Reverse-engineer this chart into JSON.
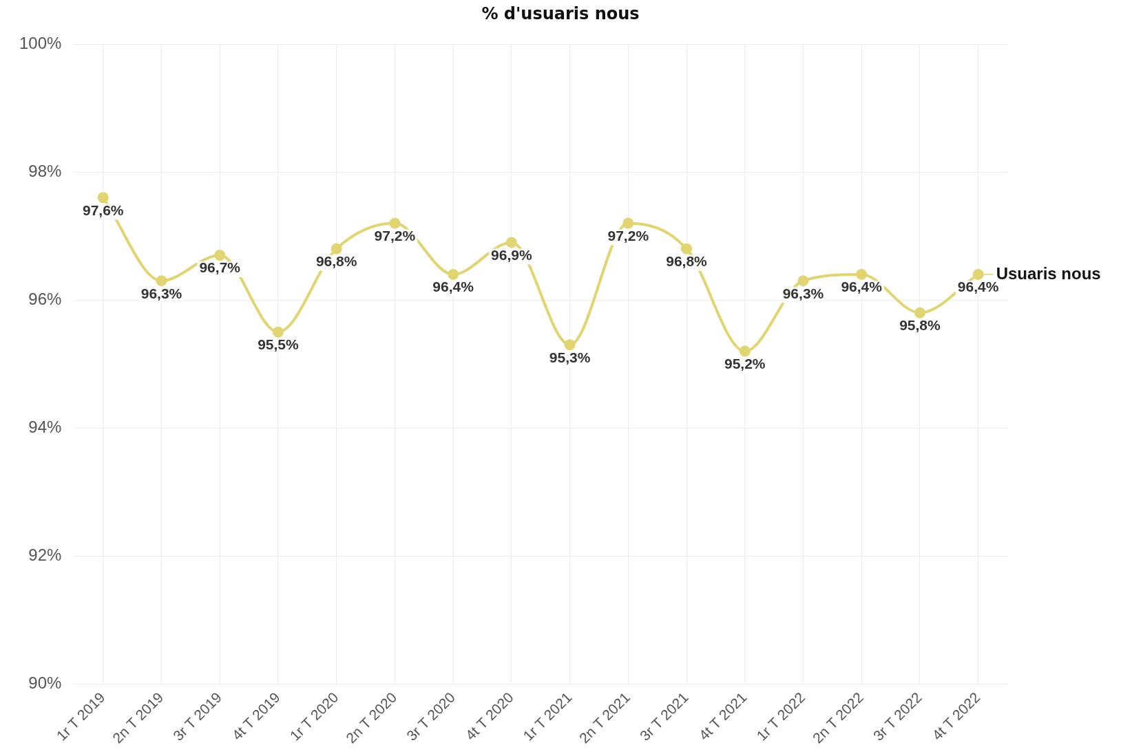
{
  "chart_data": {
    "type": "line",
    "title": "% d'usuaris nous",
    "categories": [
      "1r T 2019",
      "2n T 2019",
      "3r T 2019",
      "4t T 2019",
      "1r T 2020",
      "2n T 2020",
      "3r T 2020",
      "4t T 2020",
      "1r T 2021",
      "2n T 2021",
      "3r T 2021",
      "4t T 2021",
      "1r T 2022",
      "2n T 2022",
      "3r T 2022",
      "4t T 2022"
    ],
    "series": [
      {
        "name": "Usuaris nous",
        "color": "#e0d570",
        "values": [
          97.6,
          96.3,
          96.7,
          95.5,
          96.8,
          97.2,
          96.4,
          96.9,
          95.3,
          97.2,
          96.8,
          95.2,
          96.3,
          96.4,
          95.8,
          96.4
        ],
        "value_labels": [
          "97,6%",
          "96,3%",
          "96,7%",
          "95,5%",
          "96,8%",
          "97,2%",
          "96,4%",
          "96,9%",
          "95,3%",
          "97,2%",
          "96,8%",
          "95,2%",
          "96,3%",
          "96,4%",
          "95,8%",
          "96,4%"
        ]
      }
    ],
    "ylim": [
      90,
      100
    ],
    "yticks": [
      {
        "value": 90,
        "label": "90%"
      },
      {
        "value": 92,
        "label": "92%"
      },
      {
        "value": 94,
        "label": "94%"
      },
      {
        "value": 96,
        "label": "96%"
      },
      {
        "value": 98,
        "label": "98%"
      },
      {
        "value": 100,
        "label": "100%"
      }
    ],
    "grid": true,
    "legend": false,
    "marker": "circle",
    "line_style": "solid"
  }
}
